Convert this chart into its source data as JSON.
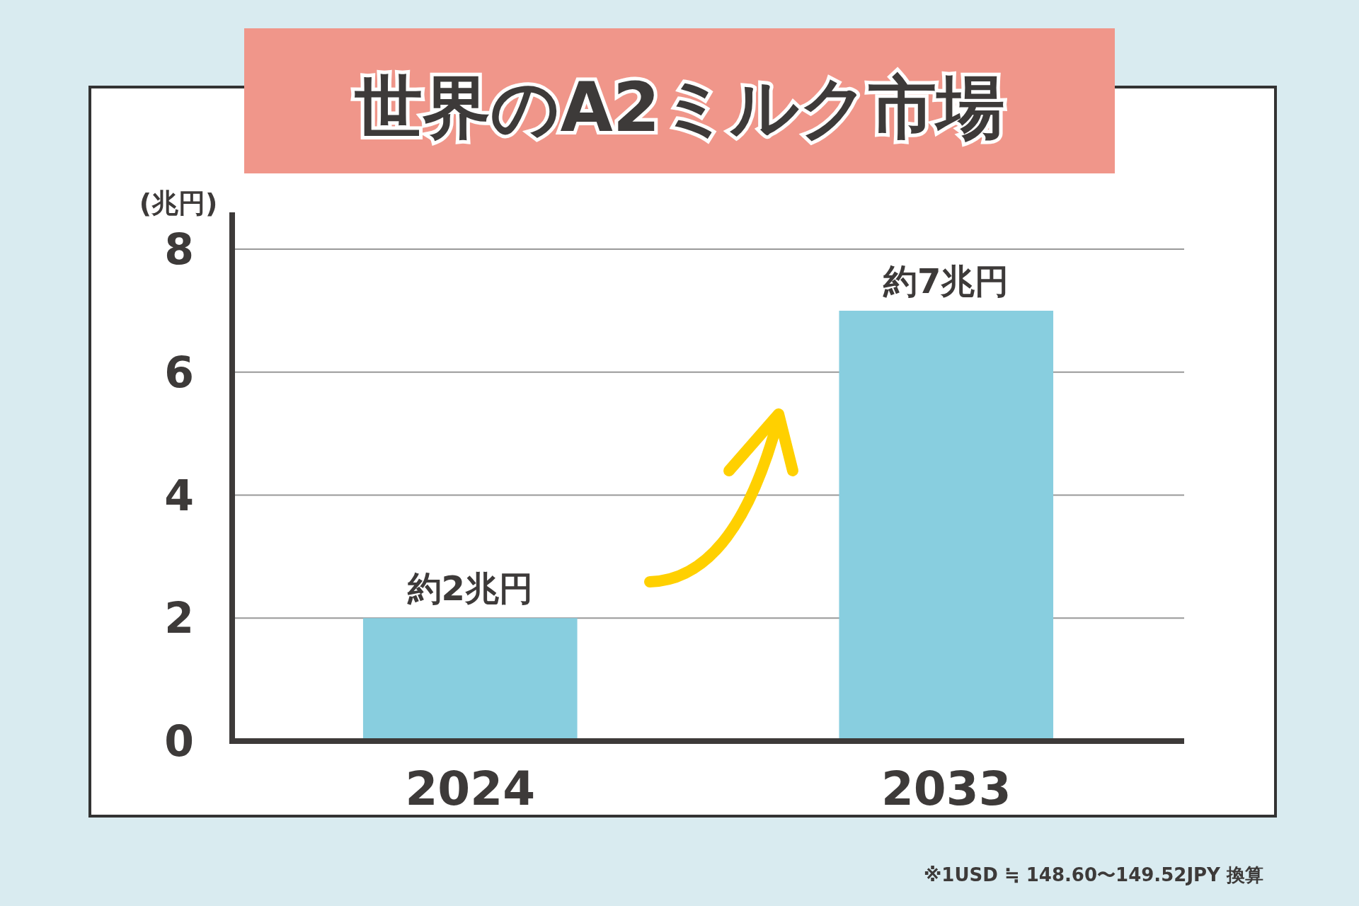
{
  "chart_data": {
    "type": "bar",
    "title": "世界のA2ミルク市場",
    "ylabel": "(兆円)",
    "categories": [
      "2024",
      "2033"
    ],
    "values": [
      2,
      7
    ],
    "value_labels": [
      "約2兆円",
      "約7兆円"
    ],
    "color": "#88cedf",
    "ylim": [
      0,
      8.6
    ],
    "yticks": [
      0,
      2,
      4,
      6,
      8
    ],
    "grid": "y",
    "annotations": [
      "※1USD ≒ 148.60〜149.52JPY 換算"
    ]
  }
}
